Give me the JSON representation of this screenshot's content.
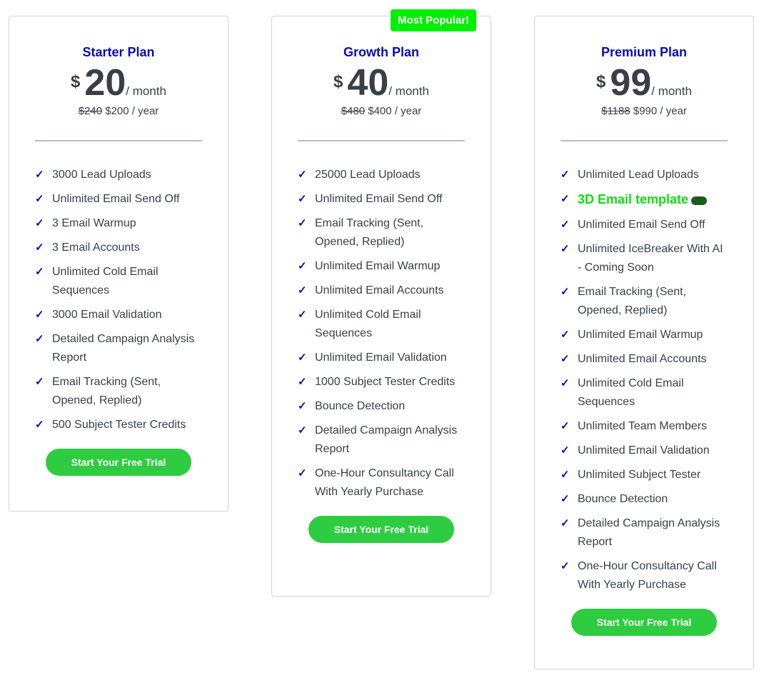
{
  "plans": [
    {
      "name": "Starter Plan",
      "currency": "$",
      "price": "20",
      "period": "/ month",
      "old_yearly": "$240",
      "yearly": "$200 / year",
      "cta": "Start Your Free Trial",
      "features": [
        "3000 Lead Uploads",
        "Unlimited Email Send Off",
        "3 Email Warmup",
        "3 Email Accounts",
        "Unlimited Cold Email Sequences",
        "3000 Email Validation",
        "Detailed Campaign Analysis Report",
        "Email Tracking (Sent, Opened, Replied)",
        "500 Subject Tester Credits"
      ]
    },
    {
      "name": "Growth Plan",
      "badge": "Most Popular!",
      "currency": "$",
      "price": "40",
      "period": "/ month",
      "old_yearly": "$480",
      "yearly": "$400 / year",
      "cta": "Start Your Free Trial",
      "features": [
        "25000 Lead Uploads",
        "Unlimited Email Send Off",
        "Email Tracking (Sent, Opened, Replied)",
        "Unlimited Email Warmup",
        "Unlimited Email Accounts",
        "Unlimited Cold Email Sequences",
        "Unlimited Email Validation",
        "1000 Subject Tester Credits",
        "Bounce Detection",
        "Detailed Campaign Analysis Report",
        "One-Hour Consultancy Call With Yearly Purchase"
      ]
    },
    {
      "name": "Premium Plan",
      "currency": "$",
      "price": "99",
      "period": "/ month",
      "old_yearly": "$1188",
      "yearly": "$990 / year",
      "cta": "Start Your Free Trial",
      "features": [
        "Unlimited Lead Uploads",
        "3D Email template",
        "Unlimited Email Send Off",
        "Unlimited IceBreaker With AI - Coming Soon",
        "Email Tracking (Sent, Opened, Replied)",
        "Unlimited Email Warmup",
        "Unlimited Email Accounts",
        "Unlimited Cold Email Sequences",
        "Unlimited Team Members",
        "Unlimited Email Validation",
        "Unlimited Subject Tester",
        "Bounce Detection",
        "Detailed Campaign Analysis Report",
        "One-Hour Consultancy Call With Yearly Purchase"
      ],
      "highlight_feature": "3D Email template",
      "highlight_icon": "gamepad-icon"
    }
  ],
  "colors": {
    "title": "#0a0ab4",
    "button": "#2ecc40",
    "badge": "#00f000",
    "highlight": "#11dd11"
  }
}
